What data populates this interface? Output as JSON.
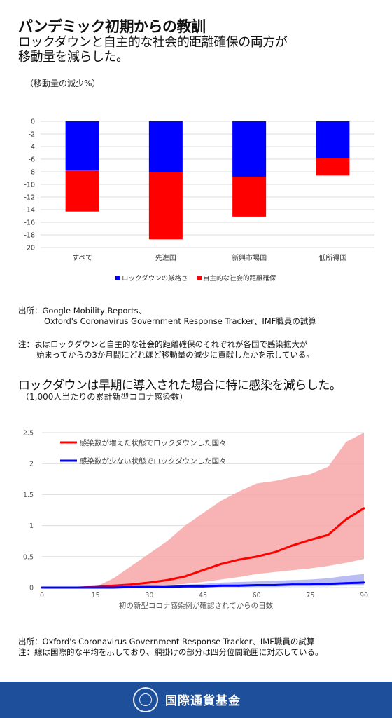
{
  "header": {
    "title": "パンデミック初期からの教訓",
    "subtitle_line1": "ロックダウンと自主的な社会的距離確保の両方が",
    "subtitle_line2": "移動量を減らした。"
  },
  "chart1": {
    "unit_label": "（移動量の減少%）",
    "source_label": "出所：",
    "source_line1": "Google Mobility Reports、",
    "source_line2": "Oxford's Coronavirus Government Response Tracker、IMF職員の試算",
    "note_label": "注：",
    "note_line1": "表はロックダウンと自主的な社会的距離確保のそれぞれが各国で感染拡大が",
    "note_line2": "始まってからの3か月間にどれほど移動量の減少に貢献したかを示している。"
  },
  "chart2": {
    "heading": "ロックダウンは早期に導入された場合に特に感染を減らした。",
    "unit_label": "（1,000人当たりの累計新型コロナ感染数）",
    "source_line": "出所：Oxford's Coronavirus Government Response Tracker、IMF職員の試算",
    "note_line": "注：線は国際的な平均を示しており、網掛けの部分は四分位間範囲に対応している。"
  },
  "footer": {
    "org_name": "国際通貨基金"
  },
  "chart_data": [
    {
      "type": "bar",
      "stacked": true,
      "categories": [
        "すべて",
        "先進国",
        "新興市場国",
        "低所得国"
      ],
      "series": [
        {
          "name": "ロックダウンの厳格さ",
          "color": "#0000ff",
          "values": [
            -7.8,
            -8.1,
            -8.8,
            -5.8
          ]
        },
        {
          "name": "自主的な社会的距離確保",
          "color": "#ff0000",
          "values": [
            -6.5,
            -10.6,
            -6.3,
            -2.8
          ]
        }
      ],
      "ylim": [
        -20,
        0
      ],
      "yticks": [
        0,
        -2,
        -4,
        -6,
        -8,
        -10,
        -12,
        -14,
        -16,
        -18,
        -20
      ],
      "grid": true,
      "legend": "bottom"
    },
    {
      "type": "line",
      "xlabel": "初の新型コロナ感染例が確認されてからの日数",
      "xlim": [
        0,
        90
      ],
      "ylim": [
        0,
        2.5
      ],
      "xticks": [
        0,
        15,
        30,
        45,
        60,
        75,
        90
      ],
      "yticks": [
        0,
        0.5,
        1,
        1.5,
        2,
        2.5
      ],
      "grid": true,
      "legend": "top-left",
      "x": [
        0,
        5,
        10,
        15,
        20,
        25,
        30,
        35,
        40,
        45,
        50,
        55,
        60,
        65,
        70,
        75,
        80,
        85,
        90
      ],
      "series": [
        {
          "name": "感染数が増えた状態でロックダウンした国々",
          "color": "#ff0000",
          "band_color": "#f7a7a7",
          "values": [
            0.0,
            0.0,
            0.0,
            0.01,
            0.03,
            0.05,
            0.08,
            0.12,
            0.18,
            0.28,
            0.38,
            0.45,
            0.5,
            0.57,
            0.68,
            0.77,
            0.85,
            1.1,
            1.28
          ],
          "upper": [
            0.0,
            0.0,
            0.0,
            0.01,
            0.15,
            0.35,
            0.55,
            0.75,
            1.0,
            1.2,
            1.4,
            1.55,
            1.68,
            1.72,
            1.78,
            1.83,
            1.95,
            2.35,
            2.5
          ],
          "lower": [
            0.0,
            0.0,
            0.0,
            0.0,
            0.0,
            0.01,
            0.02,
            0.04,
            0.06,
            0.09,
            0.13,
            0.17,
            0.22,
            0.25,
            0.28,
            0.31,
            0.35,
            0.4,
            0.46
          ]
        },
        {
          "name": "感染数が少ない状態でロックダウンした国々",
          "color": "#0000ff",
          "band_color": "#aeb0f2",
          "values": [
            0.0,
            0.0,
            0.0,
            0.0,
            0.0,
            0.01,
            0.01,
            0.01,
            0.02,
            0.02,
            0.03,
            0.03,
            0.04,
            0.04,
            0.05,
            0.05,
            0.06,
            0.07,
            0.08
          ],
          "upper": [
            0.0,
            0.0,
            0.0,
            0.0,
            0.01,
            0.01,
            0.02,
            0.03,
            0.05,
            0.06,
            0.08,
            0.09,
            0.1,
            0.11,
            0.12,
            0.13,
            0.15,
            0.19,
            0.22
          ],
          "lower": [
            0.0,
            0.0,
            0.0,
            0.0,
            0.0,
            0.0,
            0.0,
            0.0,
            0.0,
            0.0,
            0.01,
            0.01,
            0.01,
            0.01,
            0.02,
            0.02,
            0.02,
            0.03,
            0.03
          ]
        }
      ]
    }
  ]
}
